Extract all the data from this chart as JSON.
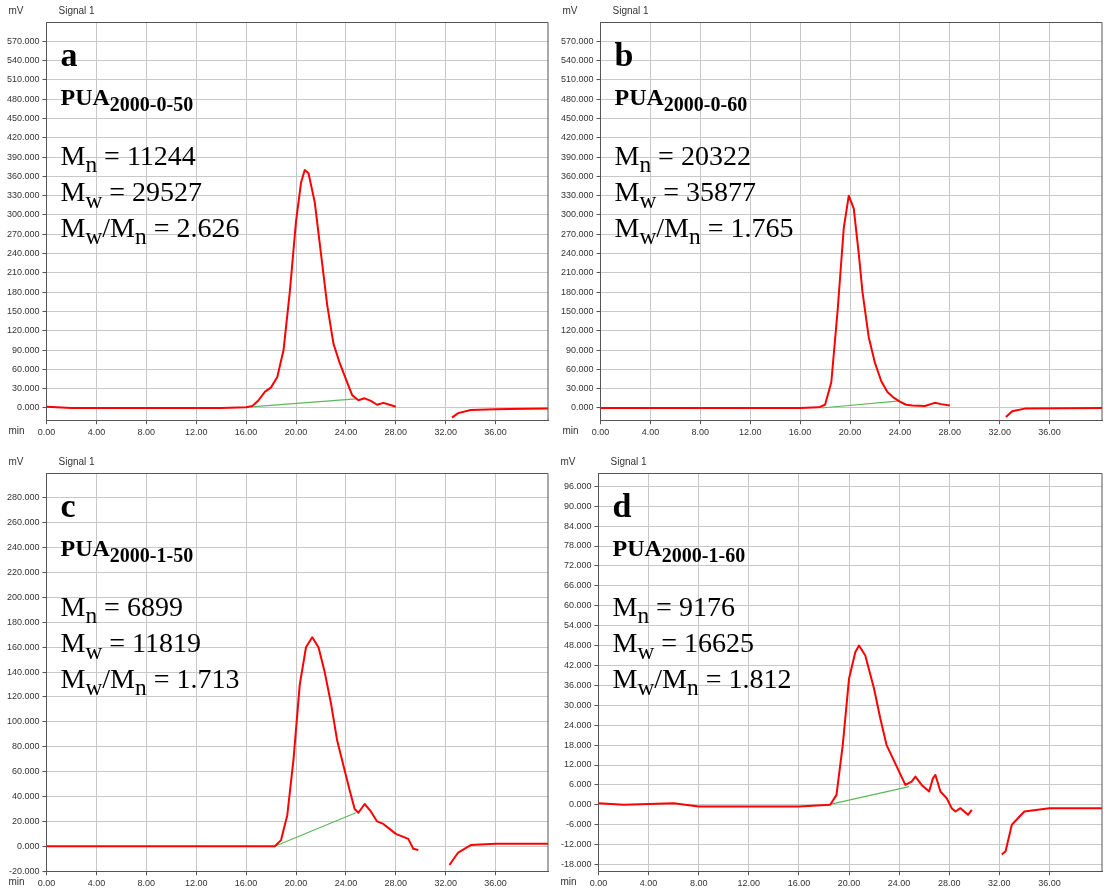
{
  "chart_data": [
    {
      "type": "line",
      "title": "Signal 1",
      "xlabel": "min",
      "ylabel": "mV",
      "grid": true,
      "legend": false,
      "marker": "none",
      "line_style": "solid",
      "annotations": [
        "a",
        "PUA$_{2000-0-50}$",
        "M$_{n}$ = 11244",
        "M$_{w}$ = 29527",
        "M$_{w}$/M$_{n}$ = 2.626"
      ],
      "xlim": [
        0,
        40.2
      ],
      "ylim": [
        -19,
        600
      ],
      "xticks": [
        {
          "value": 0,
          "label": "0.00"
        },
        {
          "value": 4,
          "label": "4.00"
        },
        {
          "value": 8,
          "label": "8.00"
        },
        {
          "value": 12,
          "label": "12.00"
        },
        {
          "value": 16,
          "label": "16.00"
        },
        {
          "value": 20,
          "label": "20.00"
        },
        {
          "value": 24,
          "label": "24.00"
        },
        {
          "value": 28,
          "label": "28.00"
        },
        {
          "value": 32,
          "label": "32.00"
        },
        {
          "value": 36,
          "label": "36.00"
        }
      ],
      "yticks": [
        {
          "value": 0,
          "label": "0.000"
        },
        {
          "value": 30,
          "label": "30.000"
        },
        {
          "value": 60,
          "label": "60.000"
        },
        {
          "value": 90,
          "label": "90.000"
        },
        {
          "value": 120,
          "label": "120.000"
        },
        {
          "value": 150,
          "label": "150.000"
        },
        {
          "value": 180,
          "label": "180.000"
        },
        {
          "value": 210,
          "label": "210.000"
        },
        {
          "value": 240,
          "label": "240.000"
        },
        {
          "value": 270,
          "label": "270.000"
        },
        {
          "value": 300,
          "label": "300.000"
        },
        {
          "value": 330,
          "label": "330.000"
        },
        {
          "value": 360,
          "label": "360.000"
        },
        {
          "value": 390,
          "label": "390.000"
        },
        {
          "value": 420,
          "label": "420.000"
        },
        {
          "value": 450,
          "label": "450.000"
        },
        {
          "value": 480,
          "label": "480.000"
        },
        {
          "value": 510,
          "label": "510.000"
        },
        {
          "value": 540,
          "label": "540.000"
        },
        {
          "value": 570,
          "label": "570.000"
        }
      ],
      "series": [
        {
          "color": "#ff0000",
          "x": [
            0,
            2,
            8,
            14,
            16,
            16.5,
            17,
            17.5,
            18,
            18.5,
            19,
            19.5,
            20,
            20.4,
            20.7,
            21,
            21.5,
            22,
            22.5,
            23,
            23.5,
            24,
            24.5,
            25,
            25.5,
            26,
            26.5,
            27,
            27.5,
            28,
            28.3,
            32,
            32.5,
            33,
            34,
            36,
            40.2
          ],
          "values": [
            2,
            0,
            0,
            0,
            1,
            3,
            12,
            25,
            32,
            48,
            90,
            180,
            290,
            350,
            370,
            365,
            320,
            240,
            160,
            100,
            70,
            45,
            20,
            12,
            15,
            11,
            5,
            8,
            5,
            2,
            null,
            null,
            -15,
            -8,
            -3,
            -2,
            -1
          ]
        },
        {
          "color": "#5cb85c",
          "x": [
            16.6,
            24.8
          ],
          "values": [
            2,
            14
          ]
        }
      ]
    },
    {
      "type": "line",
      "title": "Signal 1",
      "xlabel": "min",
      "ylabel": "mV",
      "grid": true,
      "legend": false,
      "marker": "none",
      "line_style": "solid",
      "annotations": [
        "b",
        "PUA$_{2000-0-60}$",
        "M$_{n}$ = 20322",
        "M$_{w}$ = 35877",
        "M$_{w}$/M$_{n}$ = 1.765"
      ],
      "xlim": [
        0,
        40.2
      ],
      "ylim": [
        -19,
        600
      ],
      "xticks": [
        {
          "value": 0,
          "label": "0.00"
        },
        {
          "value": 4,
          "label": "4.00"
        },
        {
          "value": 8,
          "label": "8.00"
        },
        {
          "value": 12,
          "label": "12.00"
        },
        {
          "value": 16,
          "label": "16.00"
        },
        {
          "value": 20,
          "label": "20.00"
        },
        {
          "value": 24,
          "label": "24.00"
        },
        {
          "value": 28,
          "label": "28.00"
        },
        {
          "value": 32,
          "label": "32.00"
        },
        {
          "value": 36,
          "label": "36.00"
        }
      ],
      "yticks": [
        {
          "value": 0,
          "label": "0.000"
        },
        {
          "value": 30,
          "label": "30.000"
        },
        {
          "value": 60,
          "label": "60.000"
        },
        {
          "value": 90,
          "label": "90.000"
        },
        {
          "value": 120,
          "label": "120.000"
        },
        {
          "value": 150,
          "label": "150.000"
        },
        {
          "value": 180,
          "label": "180.000"
        },
        {
          "value": 210,
          "label": "210.000"
        },
        {
          "value": 240,
          "label": "240.000"
        },
        {
          "value": 270,
          "label": "270.000"
        },
        {
          "value": 300,
          "label": "300.000"
        },
        {
          "value": 330,
          "label": "330.000"
        },
        {
          "value": 360,
          "label": "360.000"
        },
        {
          "value": 390,
          "label": "390.000"
        },
        {
          "value": 420,
          "label": "420.000"
        },
        {
          "value": 450,
          "label": "450.000"
        },
        {
          "value": 480,
          "label": "480.000"
        },
        {
          "value": 510,
          "label": "510.000"
        },
        {
          "value": 540,
          "label": "540.000"
        },
        {
          "value": 570,
          "label": "570.000"
        }
      ],
      "series": [
        {
          "color": "#ff0000",
          "x": [
            0,
            8,
            16,
            17.5,
            18,
            18.5,
            19,
            19.5,
            19.9,
            20.3,
            20.7,
            21,
            21.5,
            22,
            22.5,
            23,
            23.5,
            24,
            24.5,
            25,
            26,
            26.8,
            27.3,
            28,
            28.3,
            32,
            32.5,
            33,
            34,
            40.2
          ],
          "values": [
            0,
            0,
            0,
            1,
            5,
            40,
            150,
            280,
            330,
            310,
            240,
            180,
            110,
            70,
            42,
            25,
            16,
            10,
            5,
            4,
            3,
            8,
            6,
            4,
            null,
            null,
            -14,
            -5,
            -1,
            0
          ]
        },
        {
          "color": "#5cb85c",
          "x": [
            17.7,
            24
          ],
          "values": [
            0,
            11
          ]
        }
      ]
    },
    {
      "type": "line",
      "title": "Signal 1",
      "xlabel": "min",
      "ylabel": "mV",
      "grid": true,
      "legend": false,
      "marker": "none",
      "line_style": "solid",
      "annotations": [
        "c",
        "PUA$_{2000-1-50}$",
        "M$_{n}$ = 6899",
        "M$_{w}$ = 11819",
        "M$_{w}$/M$_{n}$ = 1.713"
      ],
      "xlim": [
        0,
        40.2
      ],
      "ylim": [
        -20,
        300
      ],
      "xticks": [
        {
          "value": 0,
          "label": "0.00"
        },
        {
          "value": 4,
          "label": "4.00"
        },
        {
          "value": 8,
          "label": "8.00"
        },
        {
          "value": 12,
          "label": "12.00"
        },
        {
          "value": 16,
          "label": "16.00"
        },
        {
          "value": 20,
          "label": "20.00"
        },
        {
          "value": 24,
          "label": "24.00"
        },
        {
          "value": 28,
          "label": "28.00"
        },
        {
          "value": 32,
          "label": "32.00"
        },
        {
          "value": 36,
          "label": "36.00"
        }
      ],
      "yticks": [
        {
          "value": -20,
          "label": "-20.000"
        },
        {
          "value": 0,
          "label": "0.000"
        },
        {
          "value": 20,
          "label": "20.000"
        },
        {
          "value": 40,
          "label": "40.000"
        },
        {
          "value": 60,
          "label": "60.000"
        },
        {
          "value": 80,
          "label": "80.000"
        },
        {
          "value": 100,
          "label": "100.000"
        },
        {
          "value": 120,
          "label": "120.000"
        },
        {
          "value": 140,
          "label": "140.000"
        },
        {
          "value": 160,
          "label": "160.000"
        },
        {
          "value": 180,
          "label": "180.000"
        },
        {
          "value": 200,
          "label": "200.000"
        },
        {
          "value": 220,
          "label": "220.000"
        },
        {
          "value": 240,
          "label": "240.000"
        },
        {
          "value": 260,
          "label": "260.000"
        },
        {
          "value": 280,
          "label": "280.000"
        }
      ],
      "series": [
        {
          "color": "#ff0000",
          "x": [
            0,
            4,
            16,
            18.3,
            18.8,
            19.3,
            19.8,
            20.3,
            20.8,
            21.3,
            21.8,
            22.3,
            22.8,
            23.3,
            23.8,
            24.3,
            24.7,
            25,
            25.5,
            26,
            26.5,
            27,
            27.5,
            28,
            29,
            29.4,
            29.8,
            30,
            32,
            32.3,
            33,
            34,
            36,
            40.2
          ],
          "values": [
            0,
            0,
            0,
            0,
            5,
            25,
            70,
            130,
            160,
            168,
            160,
            140,
            115,
            85,
            65,
            45,
            30,
            27,
            34,
            28,
            20,
            18,
            14,
            10,
            6,
            -2,
            -3,
            null,
            null,
            -15,
            -5,
            1,
            2,
            2
          ]
        },
        {
          "color": "#5cb85c",
          "x": [
            18.3,
            24.8
          ],
          "values": [
            0,
            27
          ]
        }
      ]
    },
    {
      "type": "line",
      "title": "Signal 1",
      "xlabel": "min",
      "ylabel": "mV",
      "grid": true,
      "legend": false,
      "marker": "none",
      "line_style": "solid",
      "annotations": [
        "d",
        "PUA$_{2000-1-60}$",
        "M$_{n}$ = 9176",
        "M$_{w}$ = 16625",
        "M$_{w}$/M$_{n}$ = 1.812"
      ],
      "xlim": [
        0,
        40.2
      ],
      "ylim": [
        -20,
        100
      ],
      "xticks": [
        {
          "value": 0,
          "label": "0.00"
        },
        {
          "value": 4,
          "label": "4.00"
        },
        {
          "value": 8,
          "label": "8.00"
        },
        {
          "value": 12,
          "label": "12.00"
        },
        {
          "value": 16,
          "label": "16.00"
        },
        {
          "value": 20,
          "label": "20.00"
        },
        {
          "value": 24,
          "label": "24.00"
        },
        {
          "value": 28,
          "label": "28.00"
        },
        {
          "value": 32,
          "label": "32.00"
        },
        {
          "value": 36,
          "label": "36.00"
        }
      ],
      "yticks": [
        {
          "value": -18,
          "label": "-18.000"
        },
        {
          "value": -12,
          "label": "-12.000"
        },
        {
          "value": -6,
          "label": "-6.000"
        },
        {
          "value": 0,
          "label": "0.000"
        },
        {
          "value": 6,
          "label": "6.000"
        },
        {
          "value": 12,
          "label": "12.000"
        },
        {
          "value": 18,
          "label": "18.000"
        },
        {
          "value": 24,
          "label": "24.000"
        },
        {
          "value": 30,
          "label": "30.000"
        },
        {
          "value": 36,
          "label": "36.000"
        },
        {
          "value": 42,
          "label": "42.000"
        },
        {
          "value": 48,
          "label": "48.000"
        },
        {
          "value": 54,
          "label": "54.000"
        },
        {
          "value": 60,
          "label": "60.000"
        },
        {
          "value": 66,
          "label": "66.000"
        },
        {
          "value": 72,
          "label": "72.000"
        },
        {
          "value": 78,
          "label": "78.000"
        },
        {
          "value": 84,
          "label": "84.000"
        },
        {
          "value": 90,
          "label": "90.000"
        },
        {
          "value": 96,
          "label": "96.000"
        }
      ],
      "series": [
        {
          "color": "#ff0000",
          "x": [
            0,
            2,
            6,
            8,
            12,
            16,
            18.5,
            19,
            19.5,
            20,
            20.5,
            20.8,
            21.3,
            22,
            22.5,
            23,
            23.5,
            24,
            24.5,
            25,
            25.3,
            25.8,
            26.4,
            26.7,
            26.9,
            27.3,
            27.8,
            28.2,
            28.5,
            28.9,
            29.2,
            29.5,
            29.8,
            30.1,
            31.9,
            32.2,
            32.5,
            33,
            34,
            36,
            40.2
          ],
          "values": [
            0.5,
            0,
            0.5,
            -0.5,
            -0.5,
            -0.5,
            0,
            3,
            18,
            38,
            46,
            48,
            45,
            35,
            26,
            18,
            14,
            10,
            6,
            7,
            8.5,
            6,
            4,
            8,
            9,
            4,
            2,
            -1,
            -2,
            -1,
            -2,
            -3,
            -1.5,
            null,
            null,
            -15,
            -14,
            -6,
            -2,
            -1,
            -1
          ]
        },
        {
          "color": "#5cb85c",
          "x": [
            18.3,
            24.8
          ],
          "values": [
            0,
            5.5
          ]
        }
      ]
    }
  ]
}
